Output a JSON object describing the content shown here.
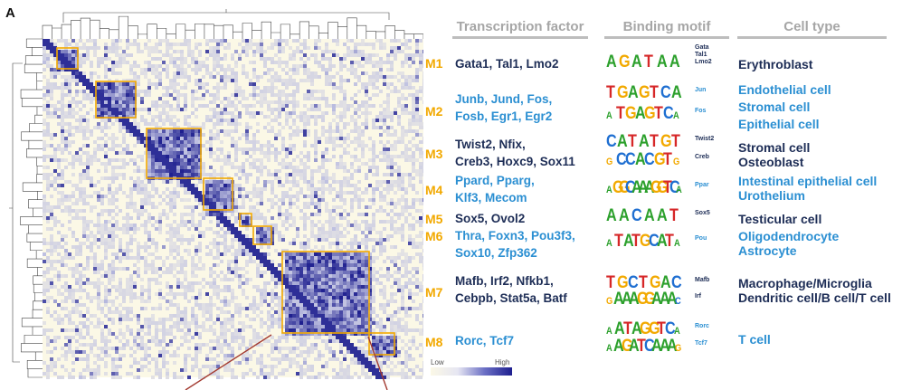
{
  "panel_letter": "A",
  "headers": {
    "tf": "Transcription factor",
    "motif": "Binding motif",
    "cell": "Cell type"
  },
  "legend": {
    "low": "Low",
    "high": "High"
  },
  "colors": {
    "module_label": "#f2a900",
    "dark_text": "#1d2d56",
    "blue_text": "#2b8fd2",
    "heat_low": "#fbf8e6",
    "heat_high": "#1e1f8f"
  },
  "modules": [
    {
      "id": "M1",
      "tf_lines": [
        "Gata1, Tal1, Lmo2"
      ],
      "tf_color": "dark",
      "motifs": [
        {
          "seq": "AGATAA",
          "labels": [
            "Gata",
            "Tal1",
            "Lmo2"
          ]
        }
      ],
      "cells": [
        {
          "text": "Erythroblast",
          "color": "dark"
        }
      ]
    },
    {
      "id": "M2",
      "tf_lines": [
        "Junb, Jund, Fos,",
        "Fosb, Egr1, Egr2"
      ],
      "tf_color": "blue",
      "motifs": [
        {
          "seq": "TGAGTCA",
          "labels": [
            "Jun"
          ]
        },
        {
          "seq": "ATGAGTCA",
          "labels": [
            "Fos"
          ]
        }
      ],
      "cells": [
        {
          "text": "Endothelial cell",
          "color": "blue"
        },
        {
          "text": "Stromal cell",
          "color": "blue"
        },
        {
          "text": "Epithelial cell",
          "color": "blue"
        }
      ]
    },
    {
      "id": "M3",
      "tf_lines": [
        "Twist2, Nfix,",
        "Creb3, Hoxc9, Sox11"
      ],
      "tf_color": "dark",
      "motifs": [
        {
          "seq": "CATATGT",
          "labels": [
            "Twist2"
          ]
        },
        {
          "seq": "GCCACGTG",
          "labels": [
            "Creb"
          ]
        }
      ],
      "cells": [
        {
          "text": "Stromal cell",
          "color": "dark"
        },
        {
          "text": "Osteoblast",
          "color": "dark"
        }
      ]
    },
    {
      "id": "M4",
      "tf_lines": [
        "Ppard, Pparg,",
        "Klf3, Mecom"
      ],
      "tf_color": "blue",
      "motifs": [
        {
          "seq": "AGGCAAAGGTCA",
          "labels": [
            "Ppar"
          ]
        }
      ],
      "cells": [
        {
          "text": "Intestinal epithelial cell",
          "color": "blue"
        },
        {
          "text": "Urothelium",
          "color": "blue"
        }
      ]
    },
    {
      "id": "M5",
      "tf_lines": [
        "Sox5, Ovol2"
      ],
      "tf_color": "dark",
      "motifs": [
        {
          "seq": "AACAAT",
          "labels": [
            "Sox5"
          ]
        }
      ],
      "cells": [
        {
          "text": "Testicular cell",
          "color": "dark"
        }
      ]
    },
    {
      "id": "M6",
      "tf_lines": [
        "Thra, Foxn3, Pou3f3,",
        "Sox10, Zfp362"
      ],
      "tf_color": "blue",
      "motifs": [
        {
          "seq": "ATATGCATA",
          "labels": [
            "Pou"
          ]
        }
      ],
      "cells": [
        {
          "text": "Oligodendrocyte",
          "color": "blue"
        },
        {
          "text": "Astrocyte",
          "color": "blue"
        }
      ]
    },
    {
      "id": "M7",
      "tf_lines": [
        "Mafb, Irf2, Nfkb1,",
        "Cebpb, Stat5a, Batf"
      ],
      "tf_color": "dark",
      "motifs": [
        {
          "seq": "TGCTGAC",
          "labels": [
            "Mafb"
          ]
        },
        {
          "seq": "GAAAGGAAAC",
          "labels": [
            "Irf"
          ]
        }
      ],
      "cells": [
        {
          "text": "Macrophage/Microglia",
          "color": "dark"
        },
        {
          "text": "Dendritic cell/B cell/T cell",
          "color": "dark"
        }
      ]
    },
    {
      "id": "M8",
      "tf_lines": [
        "Rorc, Tcf7"
      ],
      "tf_color": "blue",
      "motifs": [
        {
          "seq": "AATAGGTCA",
          "labels": [
            "Rorc"
          ]
        },
        {
          "seq": "AAGATCAAAG",
          "labels": [
            "Tcf7"
          ]
        }
      ],
      "cells": [
        {
          "text": "T cell",
          "color": "blue"
        }
      ]
    }
  ]
}
